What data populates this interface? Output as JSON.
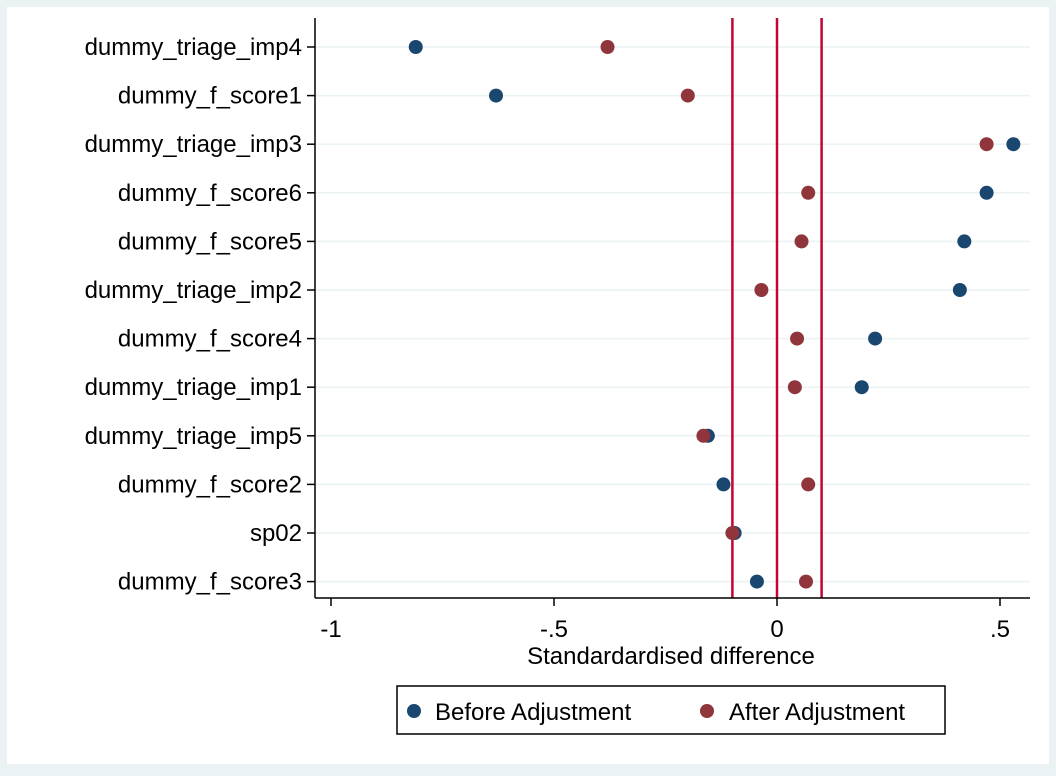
{
  "chart_data": {
    "type": "scatter",
    "title": "",
    "xlabel": "Standardardised difference",
    "ylabel": "",
    "xlim": [
      -1.0,
      0.5
    ],
    "xticks": [
      -1.0,
      -0.5,
      0.0,
      0.5
    ],
    "xtick_labels": [
      "-1",
      "-.5",
      "0",
      ".5"
    ],
    "reference_lines": [
      -0.1,
      0.0,
      0.1
    ],
    "grid": true,
    "legend_position": "bottom",
    "categories": [
      "dummy_triage_imp4",
      "dummy_f_score1",
      "dummy_triage_imp3",
      "dummy_f_score6",
      "dummy_f_score5",
      "dummy_triage_imp2",
      "dummy_f_score4",
      "dummy_triage_imp1",
      "dummy_triage_imp5",
      "dummy_f_score2",
      "sp02",
      "dummy_f_score3"
    ],
    "series": [
      {
        "name": "Before Adjustment",
        "color": "#1a476f",
        "values": [
          -0.81,
          -0.63,
          0.53,
          0.47,
          0.42,
          0.41,
          0.22,
          0.19,
          -0.155,
          -0.12,
          -0.095,
          -0.045
        ]
      },
      {
        "name": "After Adjustment",
        "color": "#90353b",
        "values": [
          -0.38,
          -0.2,
          0.47,
          0.07,
          0.055,
          -0.035,
          0.045,
          0.04,
          -0.165,
          0.07,
          -0.1,
          0.065
        ]
      }
    ],
    "colors": {
      "reference_line": "#c10534",
      "grid": "#eaf2f3",
      "plot_background": "#ffffff",
      "outer_background": "#eaf2f3"
    }
  }
}
